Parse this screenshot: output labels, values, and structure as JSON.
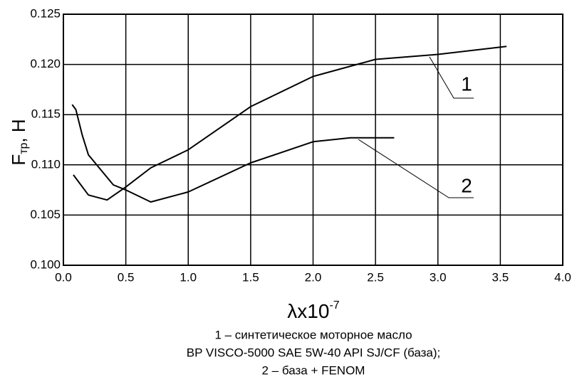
{
  "chart_data": {
    "type": "line",
    "ylabel": {
      "main": "F",
      "sub": "тр",
      "rest": ", Н"
    },
    "xlabel": {
      "main": "λx10",
      "sup": "-7"
    },
    "xlim": [
      0,
      4
    ],
    "ylim": [
      0.1,
      0.125
    ],
    "xticks": [
      {
        "value": 0,
        "label": "0.0"
      },
      0.5,
      {
        "value": 1,
        "label": "1.0"
      },
      1.5,
      {
        "value": 2,
        "label": "2.0"
      },
      2.5,
      {
        "value": 3,
        "label": "3.0"
      },
      3.5,
      {
        "value": 4,
        "label": "4.0"
      }
    ],
    "yticks": [
      {
        "value": 0.1,
        "label": "0.100"
      },
      0.105,
      {
        "value": 0.11,
        "label": "0.110"
      },
      0.115,
      {
        "value": 0.12,
        "label": "0.120"
      },
      0.125
    ],
    "grid": true,
    "series": [
      {
        "name": "1",
        "color": "#000000",
        "x": [
          0.08,
          0.2,
          0.35,
          0.5,
          0.7,
          1.0,
          1.5,
          2.0,
          2.5,
          3.0,
          3.55
        ],
        "values": [
          0.109,
          0.107,
          0.1065,
          0.1078,
          0.1097,
          0.1115,
          0.1158,
          0.1188,
          0.1205,
          0.121,
          0.1218
        ]
      },
      {
        "name": "2",
        "color": "#000000",
        "x": [
          0.07,
          0.1,
          0.15,
          0.2,
          0.3,
          0.4,
          0.5,
          0.7,
          1.0,
          1.5,
          2.0,
          2.3,
          2.65
        ],
        "values": [
          0.116,
          0.1155,
          0.113,
          0.111,
          0.1095,
          0.108,
          0.1075,
          0.1063,
          0.1073,
          0.1102,
          0.1123,
          0.1127,
          0.1127
        ]
      }
    ],
    "caption": [
      "1 – синтетическое моторное масло",
      "BP VISCO-5000 SAE 5W-40 API SJ/CF (база);",
      "2 – база + FENOM"
    ]
  }
}
